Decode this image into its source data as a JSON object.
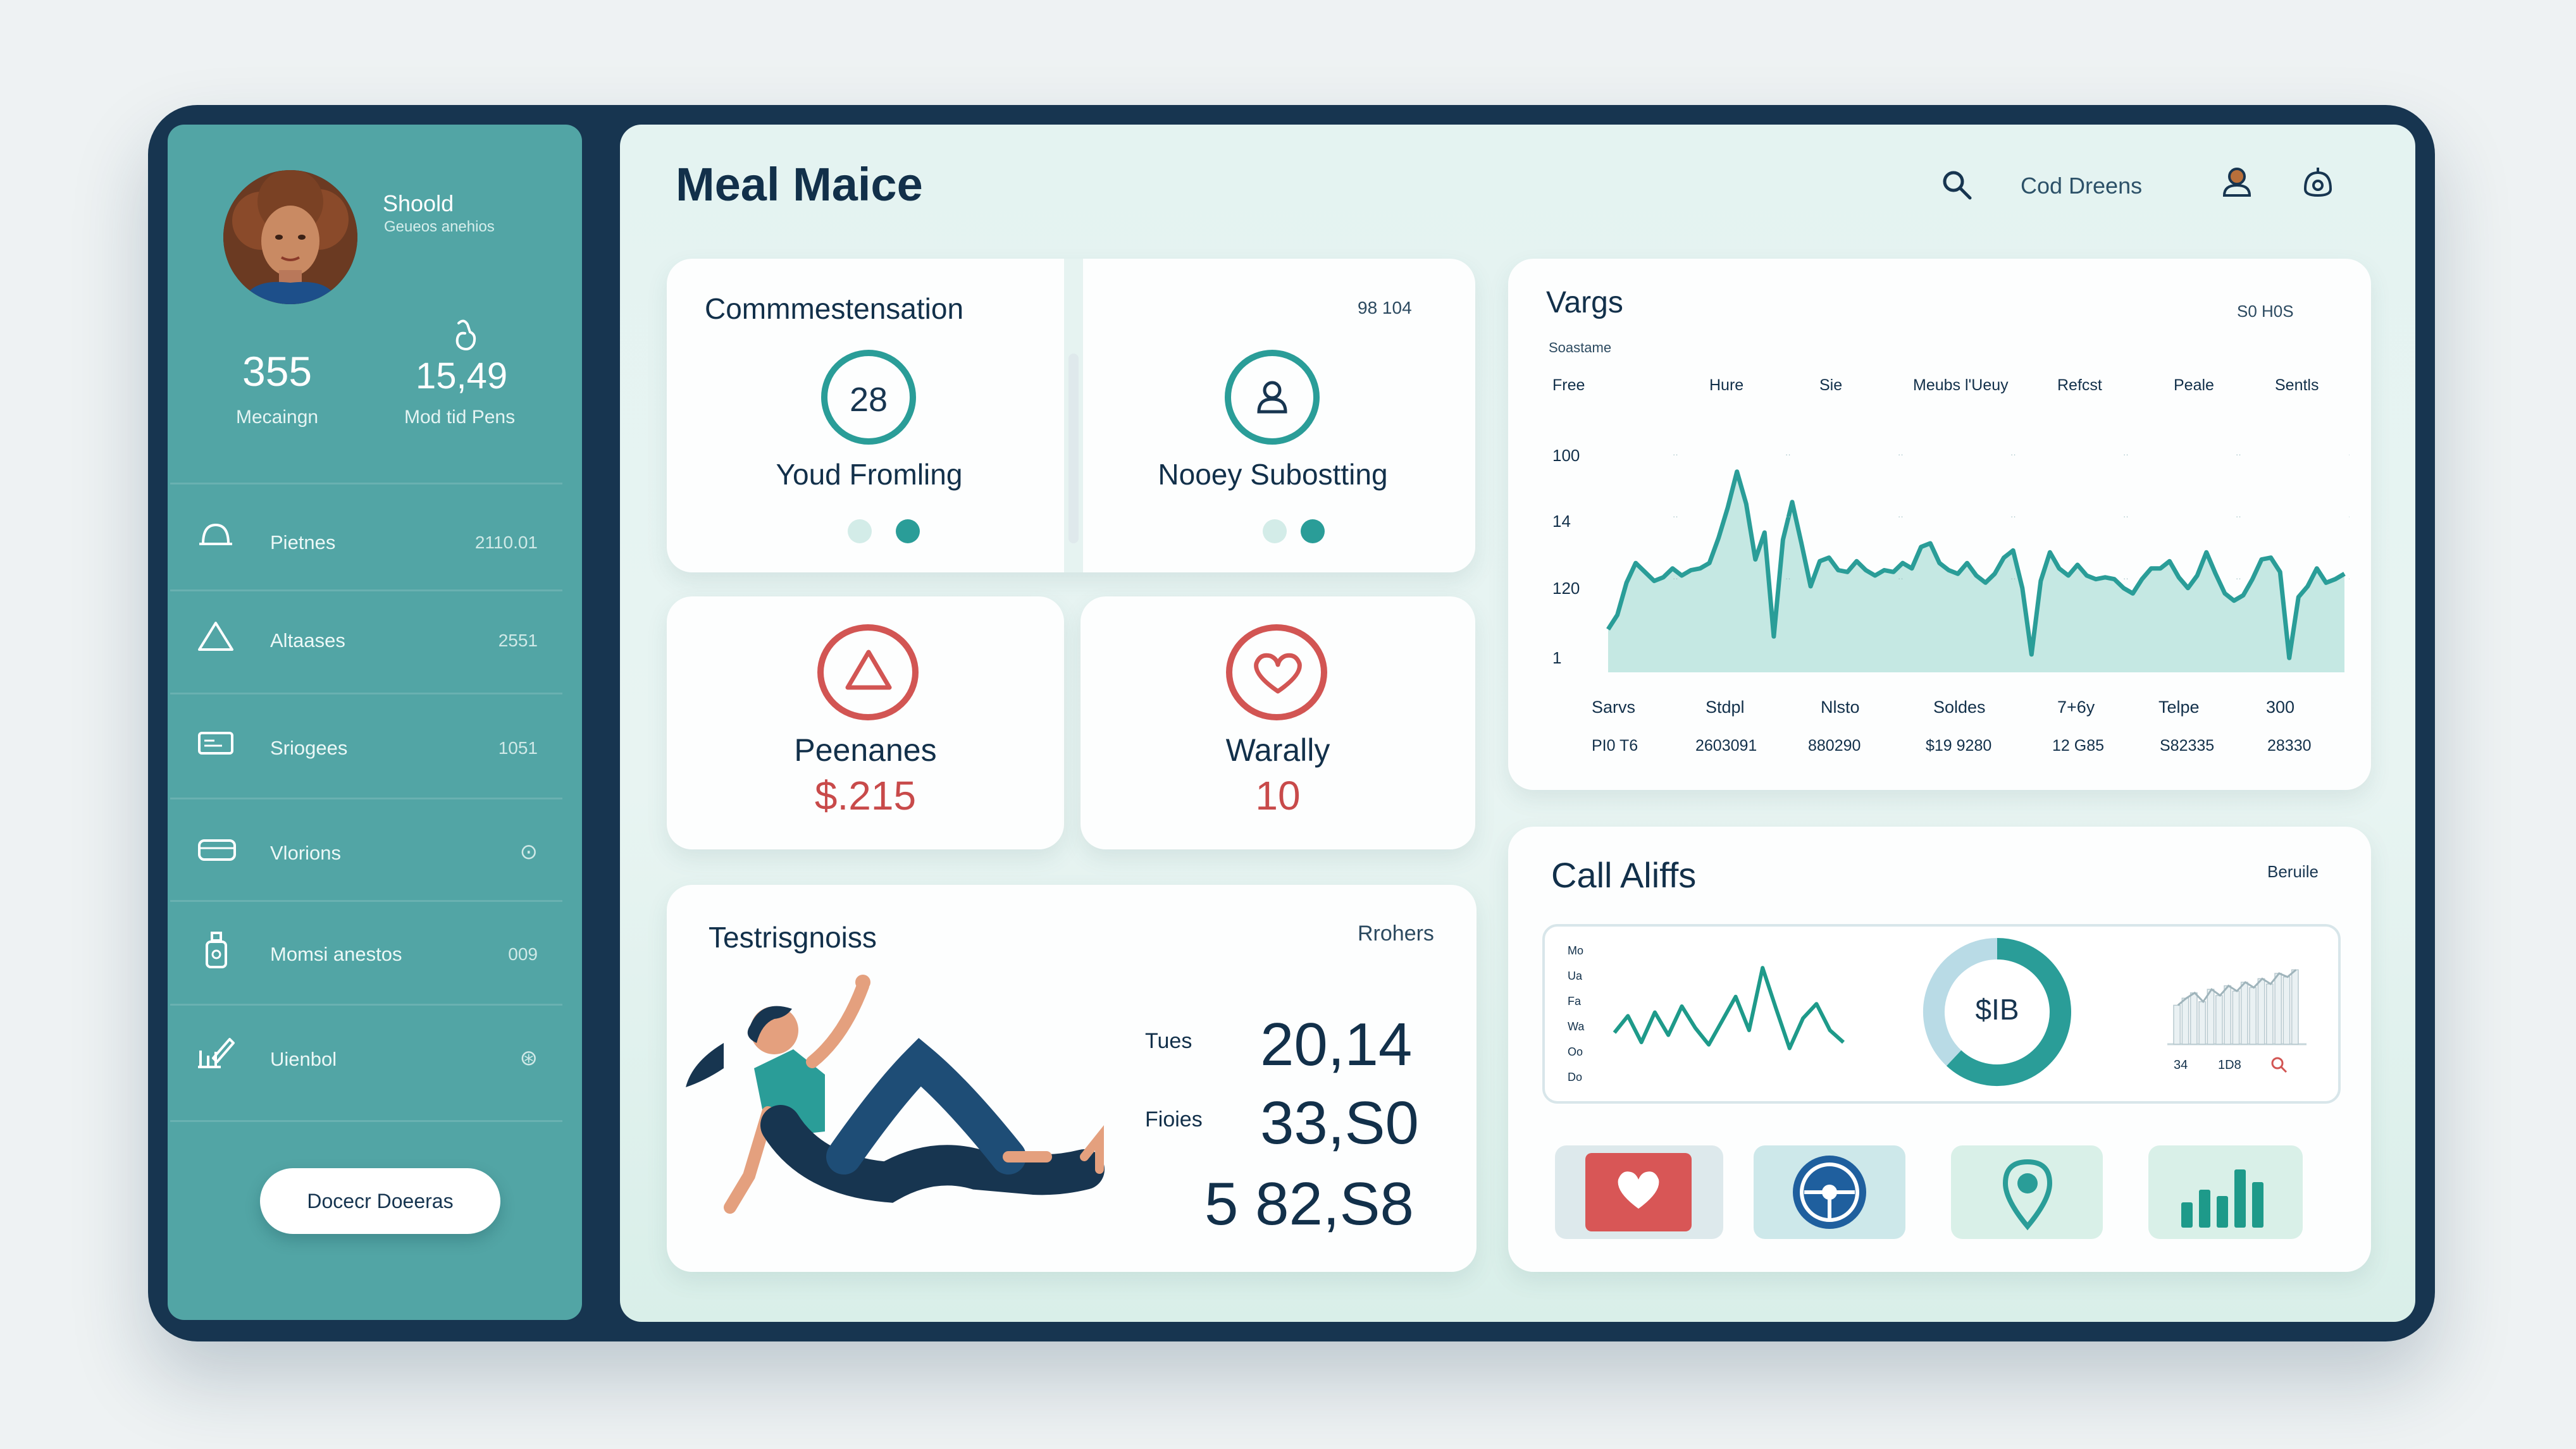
{
  "app": {
    "title": "Meal Maice",
    "header_search_label": "Cod Dreens"
  },
  "profile": {
    "name": "Shoold",
    "subtitle": "Geueos anehios"
  },
  "stats": [
    {
      "value": "355",
      "label": "Mecaingn"
    },
    {
      "value": "15,49",
      "label": "Mod tid Pens"
    }
  ],
  "sidebar": {
    "items": [
      {
        "label": "Pietnes",
        "value": "2110.01",
        "icon": "bell-icon"
      },
      {
        "label": "Altaases",
        "value": "2551",
        "icon": "triangle-icon"
      },
      {
        "label": "Sriogees",
        "value": "1051",
        "icon": "card-icon"
      },
      {
        "label": "Vlorions",
        "value": "⊙",
        "icon": "wallet-icon"
      },
      {
        "label": "Momsi anestos",
        "value": "009",
        "icon": "bottle-icon"
      },
      {
        "label": "Uienbol",
        "value": "⊛",
        "icon": "chart-pen-icon"
      }
    ],
    "button_label": "Docecr Doeeras"
  },
  "cards": {
    "compensation": {
      "title": "Commmestensation",
      "meta": "98 104",
      "left_value": "28",
      "left_label": "Youd Fromling",
      "right_label": "Nooey Subostting"
    },
    "peenanes": {
      "label": "Peenanes",
      "value": "$.215"
    },
    "warally": {
      "label": "Warally",
      "value": "10"
    },
    "testrisgnoiss": {
      "title": "Testrisgnoiss",
      "meta": "Rrohers",
      "rows": [
        {
          "label": "Tues",
          "value": "20,14"
        },
        {
          "label": "Fioies",
          "value": "33,S0"
        },
        {
          "label": "",
          "value": "5 82,S8"
        }
      ]
    },
    "vargs": {
      "title": "Vargs",
      "subtitle": "Soastame",
      "meta": "S0 H0S",
      "header_cols": [
        "Free",
        "Hure",
        "Sie",
        "Meubs l'Ueuy",
        "Refcst",
        "Peale",
        "Sentls"
      ],
      "y_labels": [
        "100",
        "14",
        "120",
        "1"
      ],
      "footer_row1": [
        "Sarvs",
        "Stdpl",
        "Nlsto",
        "Soldes",
        "7+6y",
        "Telpe",
        "300"
      ],
      "footer_row2": [
        "PI0 T6",
        "2603091",
        "880290",
        "$19 9280",
        "12 G85",
        "S82335",
        "28330"
      ]
    },
    "calls": {
      "title": "Call Aliffs",
      "meta": "Beruile",
      "mini_y_labels": [
        "Mo",
        "Ua",
        "Fa",
        "Wa",
        "Oo",
        "Do"
      ],
      "donut_label": "$IB",
      "bar_labels": [
        "34",
        "1D8"
      ]
    }
  },
  "colors": {
    "teal": "#52a5a5",
    "navy": "#173550",
    "accent": "#2a9d98",
    "red": "#d25553"
  },
  "chart_data": [
    {
      "type": "area",
      "title": "Vargs",
      "x": [
        0,
        1,
        2,
        3,
        4,
        5,
        6,
        7,
        8,
        9,
        10,
        11,
        12,
        13,
        14,
        15,
        16,
        17,
        18,
        19,
        20,
        21,
        22,
        23,
        24,
        25,
        26,
        27,
        28,
        29,
        30,
        31,
        32,
        33,
        34,
        35,
        36,
        37,
        38,
        39,
        40,
        41,
        42,
        43,
        44,
        45,
        46,
        47,
        48,
        49,
        50,
        51,
        52,
        53,
        54,
        55,
        56,
        57,
        58,
        59,
        60,
        61,
        62,
        63,
        64,
        65,
        66,
        67,
        68,
        69,
        70,
        71,
        72,
        73,
        74,
        75,
        76,
        77,
        78,
        79,
        80
      ],
      "series": [
        {
          "values": [
            24,
            32,
            50,
            61,
            56,
            51,
            53,
            58,
            54,
            57,
            58,
            61,
            75,
            92,
            112,
            94,
            63,
            78,
            48,
            74,
            95,
            72,
            48,
            62,
            64,
            57,
            56,
            62,
            57,
            54,
            57,
            56,
            61,
            58,
            70,
            72,
            61,
            57,
            55,
            61,
            54,
            50,
            55,
            64,
            68,
            47,
            28,
            51,
            67,
            58,
            54,
            60,
            54,
            52,
            53,
            52,
            47,
            44,
            52,
            58,
            58,
            62,
            53,
            47,
            54,
            67,
            55,
            44,
            40,
            43,
            52,
            63,
            64,
            56,
            34,
            42,
            48,
            58,
            50,
            52,
            55
          ],
          "dip_values": [
            null,
            null,
            null,
            null,
            null,
            null,
            null,
            null,
            null,
            null,
            null,
            null,
            null,
            null,
            null,
            null,
            null,
            null,
            20,
            null,
            null,
            null,
            null,
            null,
            null,
            null,
            null,
            null,
            null,
            null,
            null,
            null,
            null,
            null,
            null,
            null,
            null,
            null,
            null,
            null,
            null,
            null,
            null,
            null,
            null,
            null,
            10,
            null,
            null,
            null,
            null,
            null,
            null,
            null,
            null,
            null,
            null,
            null,
            null,
            null,
            null,
            null,
            null,
            null,
            null,
            null,
            null,
            null,
            null,
            null,
            null,
            null,
            null,
            null,
            8,
            null,
            null,
            null,
            null,
            null,
            null
          ]
        }
      ]
    },
    {
      "type": "line",
      "title": "",
      "series": [
        {
          "values": [
            38,
            52,
            30,
            55,
            36,
            60,
            42,
            28,
            48,
            68,
            40,
            92,
            58,
            25,
            50,
            62,
            40,
            30
          ]
        }
      ]
    },
    {
      "type": "pie",
      "title": "",
      "values": [
        62,
        38
      ]
    },
    {
      "type": "bar",
      "title": "",
      "values": [
        44,
        52,
        58,
        48,
        62,
        55,
        66,
        60,
        70,
        64,
        74,
        68,
        80,
        76,
        84
      ]
    }
  ]
}
